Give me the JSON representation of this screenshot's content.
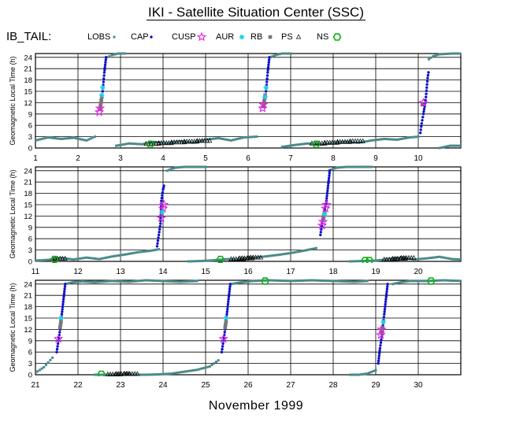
{
  "title": "IKI - Satellite Situation Center (SSC)",
  "satellite": "IB_TAIL:",
  "legend": [
    {
      "label": "LOBS",
      "marker": "square-filled",
      "color": "#4a8a8a"
    },
    {
      "label": "CAP",
      "marker": "dot",
      "color": "#1010c8"
    },
    {
      "label": "CUSP",
      "marker": "star",
      "color": "#e020e0"
    },
    {
      "label": "AUR",
      "marker": "asterisk",
      "color": "#20d0e0"
    },
    {
      "label": "RB",
      "marker": "square-open",
      "color": "#666666"
    },
    {
      "label": "PS",
      "marker": "triangle-open",
      "color": "#000000"
    },
    {
      "label": "NS",
      "marker": "hexagon-open",
      "color": "#10b010"
    }
  ],
  "x_unit_label": "November    1999",
  "colors": {
    "lobs": "#4a8a8a",
    "cap": "#1010c8",
    "cusp": "#e020e0",
    "aur": "#20d0e0",
    "rb": "#777777",
    "ps": "#000000",
    "ns": "#10b010"
  },
  "chart_data": [
    {
      "type": "scatter",
      "ylabel": "Geomagnetic Local Time (h)",
      "yticks": [
        0,
        3,
        6,
        9,
        12,
        15,
        18,
        21,
        24
      ],
      "ylim": [
        0,
        25
      ],
      "xlim": [
        1,
        11
      ],
      "xticks": [
        1,
        2,
        3,
        4,
        5,
        6,
        7,
        8,
        9,
        10
      ],
      "grid": true,
      "series": [
        {
          "name": "LOBS",
          "segments": [
            {
              "x": [
                1.0,
                1.3,
                1.6,
                1.9,
                2.2,
                2.4
              ],
              "y": [
                2.0,
                2.8,
                2.4,
                2.7,
                2.0,
                3.0
              ]
            },
            {
              "x": [
                2.68,
                2.8,
                2.95,
                3.1
              ],
              "y": [
                24.0,
                24.6,
                25.0,
                25.0
              ]
            },
            {
              "x": [
                2.9,
                3.2,
                3.5,
                3.8,
                4.1,
                4.4,
                4.7,
                5.0,
                5.3,
                5.6,
                5.9,
                6.2
              ],
              "y": [
                0.6,
                1.2,
                1.0,
                1.6,
                1.2,
                1.8,
                1.4,
                2.2,
                2.6,
                2.0,
                2.8,
                3.0
              ]
            },
            {
              "x": [
                6.52,
                6.65,
                6.8,
                7.0
              ],
              "y": [
                24.0,
                24.6,
                25.0,
                25.0
              ]
            },
            {
              "x": [
                6.8,
                7.1,
                7.4,
                7.7,
                8.0,
                8.3,
                8.6,
                8.9,
                9.2,
                9.5,
                9.8,
                10.0
              ],
              "y": [
                0.3,
                0.8,
                1.2,
                0.9,
                1.3,
                1.6,
                1.4,
                2.0,
                2.4,
                2.2,
                2.8,
                3.0
              ]
            },
            {
              "x": [
                10.25,
                10.35,
                10.5,
                10.8,
                11.0
              ],
              "y": [
                23.5,
                24.3,
                24.8,
                25.0,
                25.0
              ]
            },
            {
              "x": [
                10.5,
                10.75,
                11.0
              ],
              "y": [
                0.0,
                0.6,
                0.6
              ]
            }
          ]
        },
        {
          "name": "CAP",
          "segments": [
            {
              "x": [
                2.58,
                2.6,
                2.62,
                2.64,
                2.66
              ],
              "y": [
                15.0,
                17.5,
                20.0,
                22.0,
                24.0
              ]
            },
            {
              "x": [
                6.42,
                6.44,
                6.46,
                6.48,
                6.5
              ],
              "y": [
                15.0,
                17.5,
                20.0,
                22.0,
                24.0
              ]
            },
            {
              "x": [
                10.05,
                10.08,
                10.12,
                10.15,
                10.18,
                10.2,
                10.22,
                10.24
              ],
              "y": [
                4.0,
                6.5,
                9.0,
                11.0,
                13.5,
                16.0,
                18.5,
                20.0
              ]
            }
          ]
        },
        {
          "name": "RB",
          "segments": [
            {
              "x": [
                2.52,
                2.54,
                2.56
              ],
              "y": [
                10.5,
                12.0,
                13.5
              ]
            },
            {
              "x": [
                6.36,
                6.38,
                6.4
              ],
              "y": [
                11.0,
                12.5,
                14.0
              ]
            },
            {
              "x": [
                10.1
              ],
              "y": [
                11.5
              ]
            }
          ]
        },
        {
          "name": "CUSP",
          "x": [
            2.5,
            2.52,
            6.34,
            6.36,
            10.12
          ],
          "y": [
            9.5,
            10.5,
            10.5,
            11.5,
            12.0
          ]
        },
        {
          "name": "AUR",
          "x": [
            2.56,
            2.58,
            6.4,
            6.42
          ],
          "y": [
            14.0,
            16.0,
            13.5,
            16.0
          ]
        },
        {
          "name": "PS",
          "x": [
            3.6,
            3.9,
            4.2,
            4.5,
            4.8,
            7.5,
            7.8,
            8.1,
            8.4
          ],
          "y": [
            1.1,
            1.3,
            1.5,
            1.7,
            1.9,
            1.2,
            1.4,
            1.6,
            1.8
          ]
        },
        {
          "name": "NS",
          "x": [
            3.7,
            7.6
          ],
          "y": [
            1.0,
            1.0
          ]
        }
      ]
    },
    {
      "type": "scatter",
      "ylabel": "Geomagnetic Local Time (h)",
      "yticks": [
        0,
        3,
        6,
        9,
        12,
        15,
        18,
        21,
        24
      ],
      "ylim": [
        0,
        25
      ],
      "xlim": [
        11,
        21
      ],
      "xticks": [
        11,
        12,
        13,
        14,
        15,
        16,
        17,
        18,
        19,
        20
      ],
      "grid": true,
      "series": [
        {
          "name": "LOBS",
          "segments": [
            {
              "x": [
                11.0,
                11.3,
                11.6,
                11.9,
                12.2,
                12.5,
                12.8,
                13.1,
                13.4,
                13.7,
                13.9
              ],
              "y": [
                0.2,
                0.4,
                0.9,
                0.5,
                1.0,
                0.6,
                1.3,
                1.8,
                2.4,
                2.8,
                3.2
              ]
            },
            {
              "x": [
                14.1,
                14.2,
                14.3,
                14.5,
                14.8,
                15.0
              ],
              "y": [
                24.0,
                24.5,
                24.8,
                25.0,
                25.0,
                25.0
              ]
            },
            {
              "x": [
                14.6,
                14.9,
                15.2,
                15.5,
                15.8,
                16.1,
                16.4,
                16.7,
                17.0,
                17.3,
                17.6
              ],
              "y": [
                0.0,
                0.1,
                0.3,
                0.6,
                0.4,
                0.9,
                1.3,
                1.7,
                2.2,
                2.8,
                3.5
              ]
            },
            {
              "x": [
                17.9,
                18.0,
                18.1,
                18.3,
                18.6,
                18.9
              ],
              "y": [
                24.0,
                24.5,
                24.8,
                25.0,
                25.0,
                25.0
              ]
            },
            {
              "x": [
                18.4,
                18.7,
                19.0,
                19.3,
                19.6,
                19.9,
                20.2,
                20.5,
                20.8,
                21.0
              ],
              "y": [
                0.0,
                0.1,
                0.2,
                0.6,
                1.0,
                0.5,
                0.8,
                1.2,
                0.6,
                0.5
              ]
            }
          ]
        },
        {
          "name": "CAP",
          "segments": [
            {
              "x": [
                13.86,
                13.88,
                13.9,
                13.92,
                13.94,
                13.96,
                13.98,
                14.0,
                14.02
              ],
              "y": [
                4.0,
                5.5,
                7.0,
                8.5,
                10.0,
                16.0,
                17.5,
                19.0,
                20.0
              ]
            },
            {
              "x": [
                17.7,
                17.72,
                17.84,
                17.86,
                17.88,
                17.9,
                17.92
              ],
              "y": [
                7.0,
                8.5,
                16.0,
                18.0,
                20.0,
                22.0,
                24.0
              ]
            }
          ]
        },
        {
          "name": "RB",
          "segments": [
            {
              "x": [
                17.76,
                17.78,
                17.8
              ],
              "y": [
                11.0,
                12.0,
                13.0
              ]
            }
          ]
        },
        {
          "name": "CUSP",
          "x": [
            13.96,
            14.0,
            14.02,
            17.74,
            17.76,
            17.82,
            17.84
          ],
          "y": [
            11.5,
            14.0,
            15.0,
            9.5,
            10.5,
            14.0,
            15.0
          ]
        },
        {
          "name": "AUR",
          "x": [
            13.98,
            17.8
          ],
          "y": [
            13.0,
            12.5
          ]
        },
        {
          "name": "PS",
          "x": [
            11.4,
            15.6,
            15.8,
            16.0,
            19.2,
            19.4,
            19.6
          ],
          "y": [
            0.7,
            0.6,
            0.8,
            1.0,
            0.5,
            0.7,
            0.9
          ]
        },
        {
          "name": "NS",
          "x": [
            11.45,
            15.35,
            18.75,
            18.85
          ],
          "y": [
            0.5,
            0.5,
            0.2,
            0.2
          ]
        }
      ]
    },
    {
      "type": "scatter",
      "ylabel": "Geomagnetic Local Time (h)",
      "yticks": [
        0,
        3,
        6,
        9,
        12,
        15,
        18,
        21,
        24
      ],
      "ylim": [
        0,
        25
      ],
      "xlim": [
        21,
        31
      ],
      "xticks": [
        21,
        22,
        23,
        24,
        25,
        26,
        27,
        28,
        29,
        30
      ],
      "grid": true,
      "series": [
        {
          "name": "LOBS",
          "segments": [
            {
              "x": [
                21.0,
                21.2,
                21.4
              ],
              "y": [
                0.5,
                2.0,
                4.5
              ]
            },
            {
              "x": [
                21.7,
                21.9,
                22.1,
                22.4,
                22.8,
                23.2,
                23.6,
                24.0,
                24.4,
                24.8
              ],
              "y": [
                24.0,
                24.5,
                24.7,
                24.5,
                24.8,
                24.6,
                25.0,
                24.8,
                24.6,
                24.8
              ]
            },
            {
              "x": [
                22.4,
                22.7,
                23.0,
                23.3,
                23.6,
                23.9,
                24.2,
                24.5,
                24.8,
                25.1,
                25.3
              ],
              "y": [
                0.0,
                0.0,
                0.0,
                0.0,
                0.0,
                0.1,
                0.3,
                0.8,
                1.3,
                2.2,
                3.8
              ]
            },
            {
              "x": [
                25.6,
                25.8,
                26.1,
                26.5,
                27.0,
                27.5,
                28.0,
                28.5,
                28.8
              ],
              "y": [
                24.0,
                24.4,
                24.8,
                25.0,
                24.8,
                25.0,
                24.8,
                24.6,
                24.8
              ]
            },
            {
              "x": [
                28.4,
                28.6,
                28.8,
                29.0
              ],
              "y": [
                0.0,
                0.0,
                0.3,
                1.2
              ]
            },
            {
              "x": [
                29.4,
                29.6,
                29.8,
                30.2,
                30.6,
                31.0
              ],
              "y": [
                24.0,
                24.5,
                24.8,
                24.8,
                25.0,
                24.8
              ]
            }
          ]
        },
        {
          "name": "CAP",
          "segments": [
            {
              "x": [
                21.5,
                21.52,
                21.54,
                21.56,
                21.58,
                21.62,
                21.64,
                21.66,
                21.68,
                21.7
              ],
              "y": [
                6.0,
                7.5,
                9.0,
                10.5,
                12.0,
                16.0,
                18.0,
                20.0,
                22.0,
                24.0
              ]
            },
            {
              "x": [
                25.38,
                25.4,
                25.42,
                25.44,
                25.46,
                25.5,
                25.52,
                25.54,
                25.56,
                25.58
              ],
              "y": [
                6.0,
                7.5,
                9.0,
                10.5,
                12.0,
                16.0,
                18.0,
                20.0,
                22.0,
                24.0
              ]
            },
            {
              "x": [
                29.06,
                29.08,
                29.1,
                29.12,
                29.14,
                29.2,
                29.22,
                29.24,
                29.26,
                29.28
              ],
              "y": [
                3.0,
                5.0,
                7.0,
                8.5,
                10.0,
                16.0,
                18.0,
                20.0,
                22.0,
                24.0
              ]
            }
          ]
        },
        {
          "name": "RB",
          "segments": [
            {
              "x": [
                21.58,
                21.6
              ],
              "y": [
                12.5,
                14.0
              ]
            },
            {
              "x": [
                25.46,
                25.48
              ],
              "y": [
                12.5,
                14.0
              ]
            },
            {
              "x": [
                29.14,
                29.16
              ],
              "y": [
                11.0,
                12.5
              ]
            }
          ]
        },
        {
          "name": "CUSP",
          "x": [
            21.54,
            25.42,
            29.12,
            29.14
          ],
          "y": [
            9.5,
            9.5,
            10.5,
            12.0
          ]
        },
        {
          "name": "AUR",
          "x": [
            21.6,
            25.48,
            29.18
          ],
          "y": [
            15.0,
            15.0,
            14.0
          ]
        },
        {
          "name": "PS",
          "x": [
            22.7,
            22.9,
            23.1
          ],
          "y": [
            0.1,
            0.2,
            0.2
          ]
        },
        {
          "name": "NS",
          "x": [
            22.55,
            26.4,
            30.3
          ],
          "y": [
            0.1,
            24.8,
            24.8
          ]
        }
      ]
    }
  ]
}
